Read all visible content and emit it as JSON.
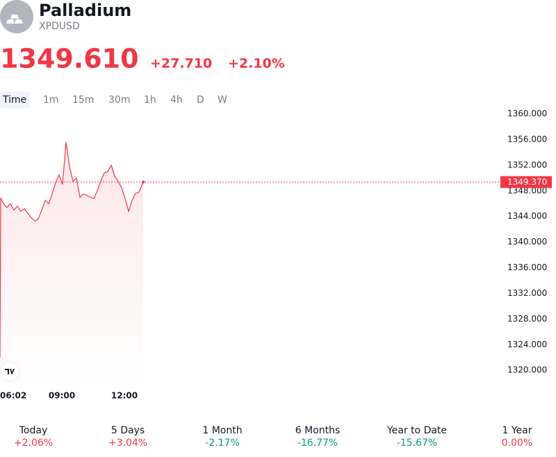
{
  "header": {
    "name": "Palladium",
    "symbol": "XPDUSD",
    "price": "1349.610",
    "change": "+27.710",
    "change_pct": "+2.10%",
    "color": "#f23645"
  },
  "tabs": {
    "items": [
      "Time",
      "1m",
      "15m",
      "30m",
      "1h",
      "4h",
      "D",
      "W"
    ],
    "selected": 0
  },
  "performance": [
    {
      "label": "Today",
      "value": "+2.06%",
      "color": "#f23645"
    },
    {
      "label": "5 Days",
      "value": "+3.04%",
      "color": "#f23645"
    },
    {
      "label": "1 Month",
      "value": "-2.17%",
      "color": "#089981"
    },
    {
      "label": "6 Months",
      "value": "-16.77%",
      "color": "#089981"
    },
    {
      "label": "Year to Date",
      "value": "-15.67%",
      "color": "#089981"
    },
    {
      "label": "1 Year",
      "value": "0.00%",
      "color": "#f23645"
    }
  ],
  "chart_data": {
    "type": "line",
    "color": "#f23645",
    "x": [
      "06:02",
      "06:04",
      "06:12",
      "06:22",
      "06:32",
      "06:42",
      "06:52",
      "07:02",
      "07:12",
      "07:22",
      "07:32",
      "07:42",
      "07:52",
      "08:02",
      "08:12",
      "08:22",
      "08:32",
      "08:42",
      "08:52",
      "09:02",
      "09:12",
      "09:22",
      "09:32",
      "09:42",
      "09:52",
      "10:02",
      "10:12",
      "10:22",
      "10:32",
      "10:42",
      "10:52",
      "11:02",
      "11:12",
      "11:22",
      "11:32",
      "11:42",
      "11:52",
      "12:02",
      "12:12",
      "12:22",
      "12:32",
      "12:42",
      "12:54"
    ],
    "values": [
      1322.0,
      1346.9,
      1346.0,
      1345.4,
      1346.0,
      1345.0,
      1345.6,
      1344.8,
      1345.2,
      1344.5,
      1343.8,
      1343.3,
      1343.6,
      1345.0,
      1346.5,
      1346.0,
      1347.5,
      1349.3,
      1350.5,
      1349.0,
      1355.6,
      1351.8,
      1349.5,
      1350.0,
      1347.0,
      1347.5,
      1347.3,
      1347.0,
      1346.8,
      1348.0,
      1349.5,
      1350.8,
      1351.0,
      1352.0,
      1350.3,
      1349.5,
      1348.5,
      1346.8,
      1344.8,
      1346.5,
      1347.6,
      1347.8,
      1349.37
    ],
    "value_labels": [
      null,
      null,
      null,
      null,
      null,
      null,
      null,
      null,
      null,
      null,
      null,
      null,
      null,
      null,
      null,
      null,
      null,
      null,
      null,
      null,
      null,
      null,
      null,
      null,
      null,
      null,
      null,
      null,
      null,
      null,
      null,
      null,
      null,
      null,
      null,
      null,
      null,
      null,
      null,
      null,
      null,
      null,
      "1349.370"
    ],
    "xlim": [
      "06:02",
      "06:02"
    ],
    "xticks": [
      "06:02",
      "09:00",
      "12:00"
    ],
    "ylim": [
      1318,
      1361
    ],
    "yticks": [
      {
        "value": 1320,
        "label": "1320.000"
      },
      {
        "value": 1324,
        "label": "1324.000"
      },
      {
        "value": 1328,
        "label": "1328.000"
      },
      {
        "value": 1332,
        "label": "1332.000"
      },
      {
        "value": 1336,
        "label": "1336.000"
      },
      {
        "value": 1340,
        "label": "1340.000"
      },
      {
        "value": 1344,
        "label": "1344.000"
      },
      {
        "value": 1348,
        "label": "1348.000"
      },
      {
        "value": 1352,
        "label": "1352.000"
      },
      {
        "value": 1356,
        "label": "1356.000"
      },
      {
        "value": 1360,
        "label": "1360.000"
      }
    ]
  }
}
